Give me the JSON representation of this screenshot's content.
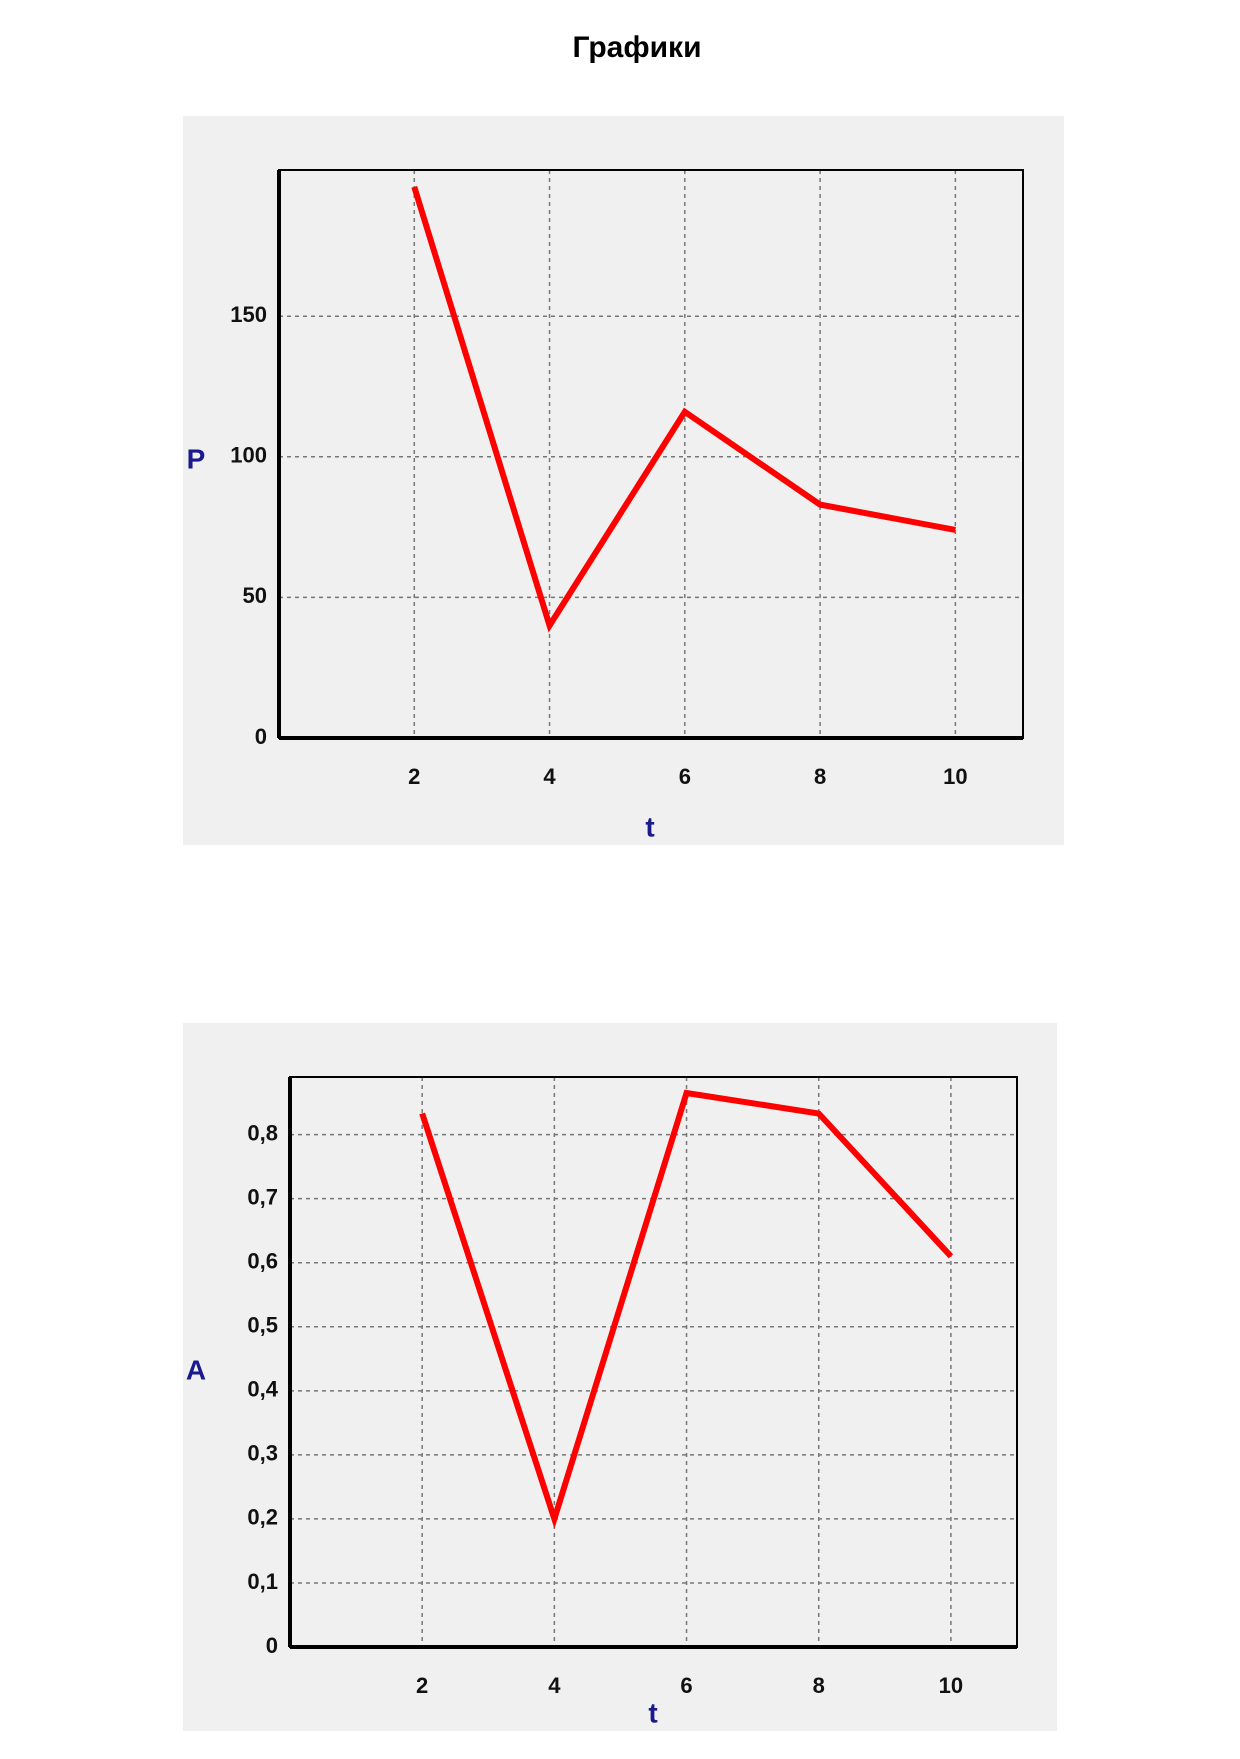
{
  "title": "Графики",
  "chart_data": [
    {
      "type": "line",
      "y_label": "P",
      "x_label": "t",
      "x": [
        2,
        4,
        6,
        8,
        10
      ],
      "series": [
        {
          "color": "#ff0000",
          "values": [
            196,
            40,
            116,
            83,
            74
          ]
        }
      ],
      "xlim": [
        0,
        11
      ],
      "xticks": [
        2,
        4,
        6,
        8,
        10
      ],
      "ylim": [
        0,
        202
      ],
      "yticks": [
        0,
        50,
        100,
        150
      ],
      "grid": true
    },
    {
      "type": "line",
      "y_label": "A",
      "x_label": "t",
      "x": [
        2,
        4,
        6,
        8,
        10
      ],
      "series": [
        {
          "color": "#ff0000",
          "values": [
            0.833,
            0.2,
            0.865,
            0.833,
            0.61
          ]
        }
      ],
      "xlim": [
        0,
        11
      ],
      "xticks": [
        2,
        4,
        6,
        8,
        10
      ],
      "ylim": [
        0,
        0.89
      ],
      "yticks": [
        0,
        {
          "value": 0.1,
          "label": "0,1"
        },
        {
          "value": 0.2,
          "label": "0,2"
        },
        {
          "value": 0.3,
          "label": "0,3"
        },
        {
          "value": 0.4,
          "label": "0,4"
        },
        {
          "value": 0.5,
          "label": "0,5"
        },
        {
          "value": 0.6,
          "label": "0,6"
        },
        {
          "value": 0.7,
          "label": "0,7"
        },
        {
          "value": 0.8,
          "label": "0,8"
        }
      ],
      "grid": true
    }
  ]
}
